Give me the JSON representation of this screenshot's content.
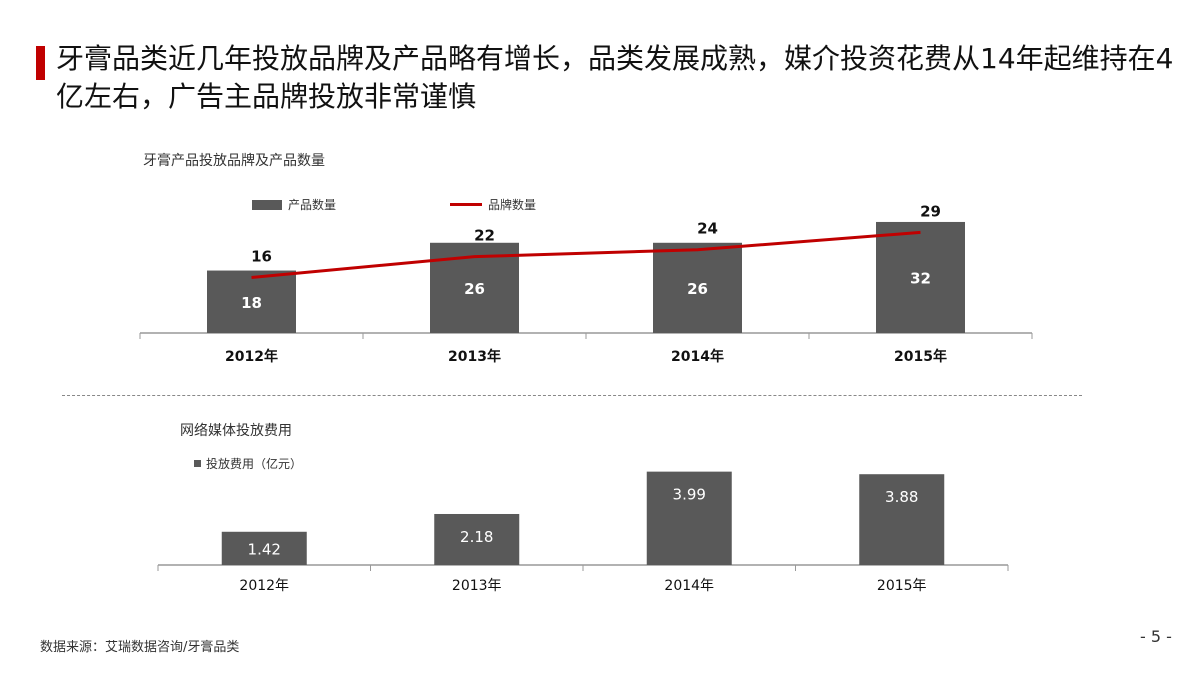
{
  "title": "牙膏品类近几年投放品牌及产品略有增长，品类发展成熟，媒介投资花费从14年起维持在4亿左右，广告主品牌投放非常谨慎",
  "source": "数据来源：艾瑞数据咨询/牙膏品类",
  "page_number": "- 5 -",
  "colors": {
    "accent": "#c00000",
    "bar": "#595959"
  },
  "chart_data": [
    {
      "type": "bar+line",
      "title": "牙膏产品投放品牌及产品数量",
      "categories": [
        "2012年",
        "2013年",
        "2014年",
        "2015年"
      ],
      "series": [
        {
          "name": "产品数量",
          "type": "bar",
          "values": [
            18,
            26,
            26,
            32
          ],
          "color": "#595959"
        },
        {
          "name": "品牌数量",
          "type": "line",
          "values": [
            16,
            22,
            24,
            29
          ],
          "color": "#c00000"
        }
      ],
      "legend": "top"
    },
    {
      "type": "bar",
      "title": "网络媒体投放费用",
      "categories": [
        "2012年",
        "2013年",
        "2014年",
        "2015年"
      ],
      "series": [
        {
          "name": "投放费用（亿元）",
          "values": [
            1.42,
            2.18,
            3.99,
            3.88
          ],
          "color": "#595959"
        }
      ],
      "legend": "top-left"
    }
  ]
}
